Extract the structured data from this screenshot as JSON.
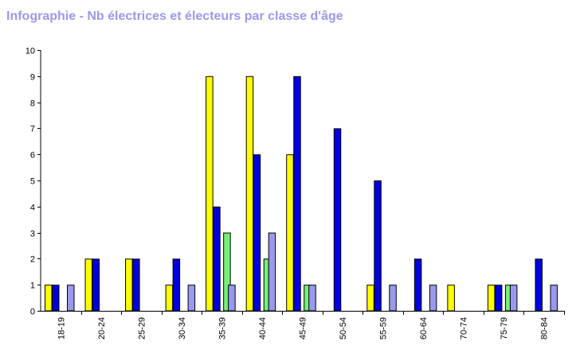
{
  "chart_data": {
    "type": "bar",
    "title": "Infographie - Nb électrices et électeurs par classe d'âge",
    "categories": [
      "18-19",
      "20-24",
      "25-29",
      "30-34",
      "35-39",
      "40-44",
      "45-49",
      "50-54",
      "55-59",
      "60-64",
      "70-74",
      "75-79",
      "80-84"
    ],
    "series": [
      {
        "color": "#ffff00",
        "values": [
          1,
          2,
          2,
          1,
          9,
          9,
          6,
          0,
          1,
          0,
          1,
          1,
          0
        ]
      },
      {
        "color": "#0000dd",
        "values": [
          1,
          2,
          2,
          2,
          4,
          6,
          9,
          7,
          5,
          2,
          0,
          1,
          2
        ]
      },
      {
        "color": "#77ee77",
        "values": [
          0,
          0,
          0,
          0,
          3,
          2,
          1,
          0,
          0,
          0,
          0,
          1,
          0
        ]
      },
      {
        "color": "#9999ee",
        "values": [
          1,
          0,
          0,
          1,
          1,
          3,
          1,
          0,
          1,
          1,
          0,
          1,
          1
        ]
      }
    ],
    "yticks": [
      "0",
      "1",
      "2",
      "3",
      "4",
      "5",
      "6",
      "7",
      "8",
      "9",
      "10"
    ],
    "ylim": [
      0,
      10
    ],
    "xlabel": "",
    "ylabel": "",
    "grid": false,
    "legend": "none"
  }
}
